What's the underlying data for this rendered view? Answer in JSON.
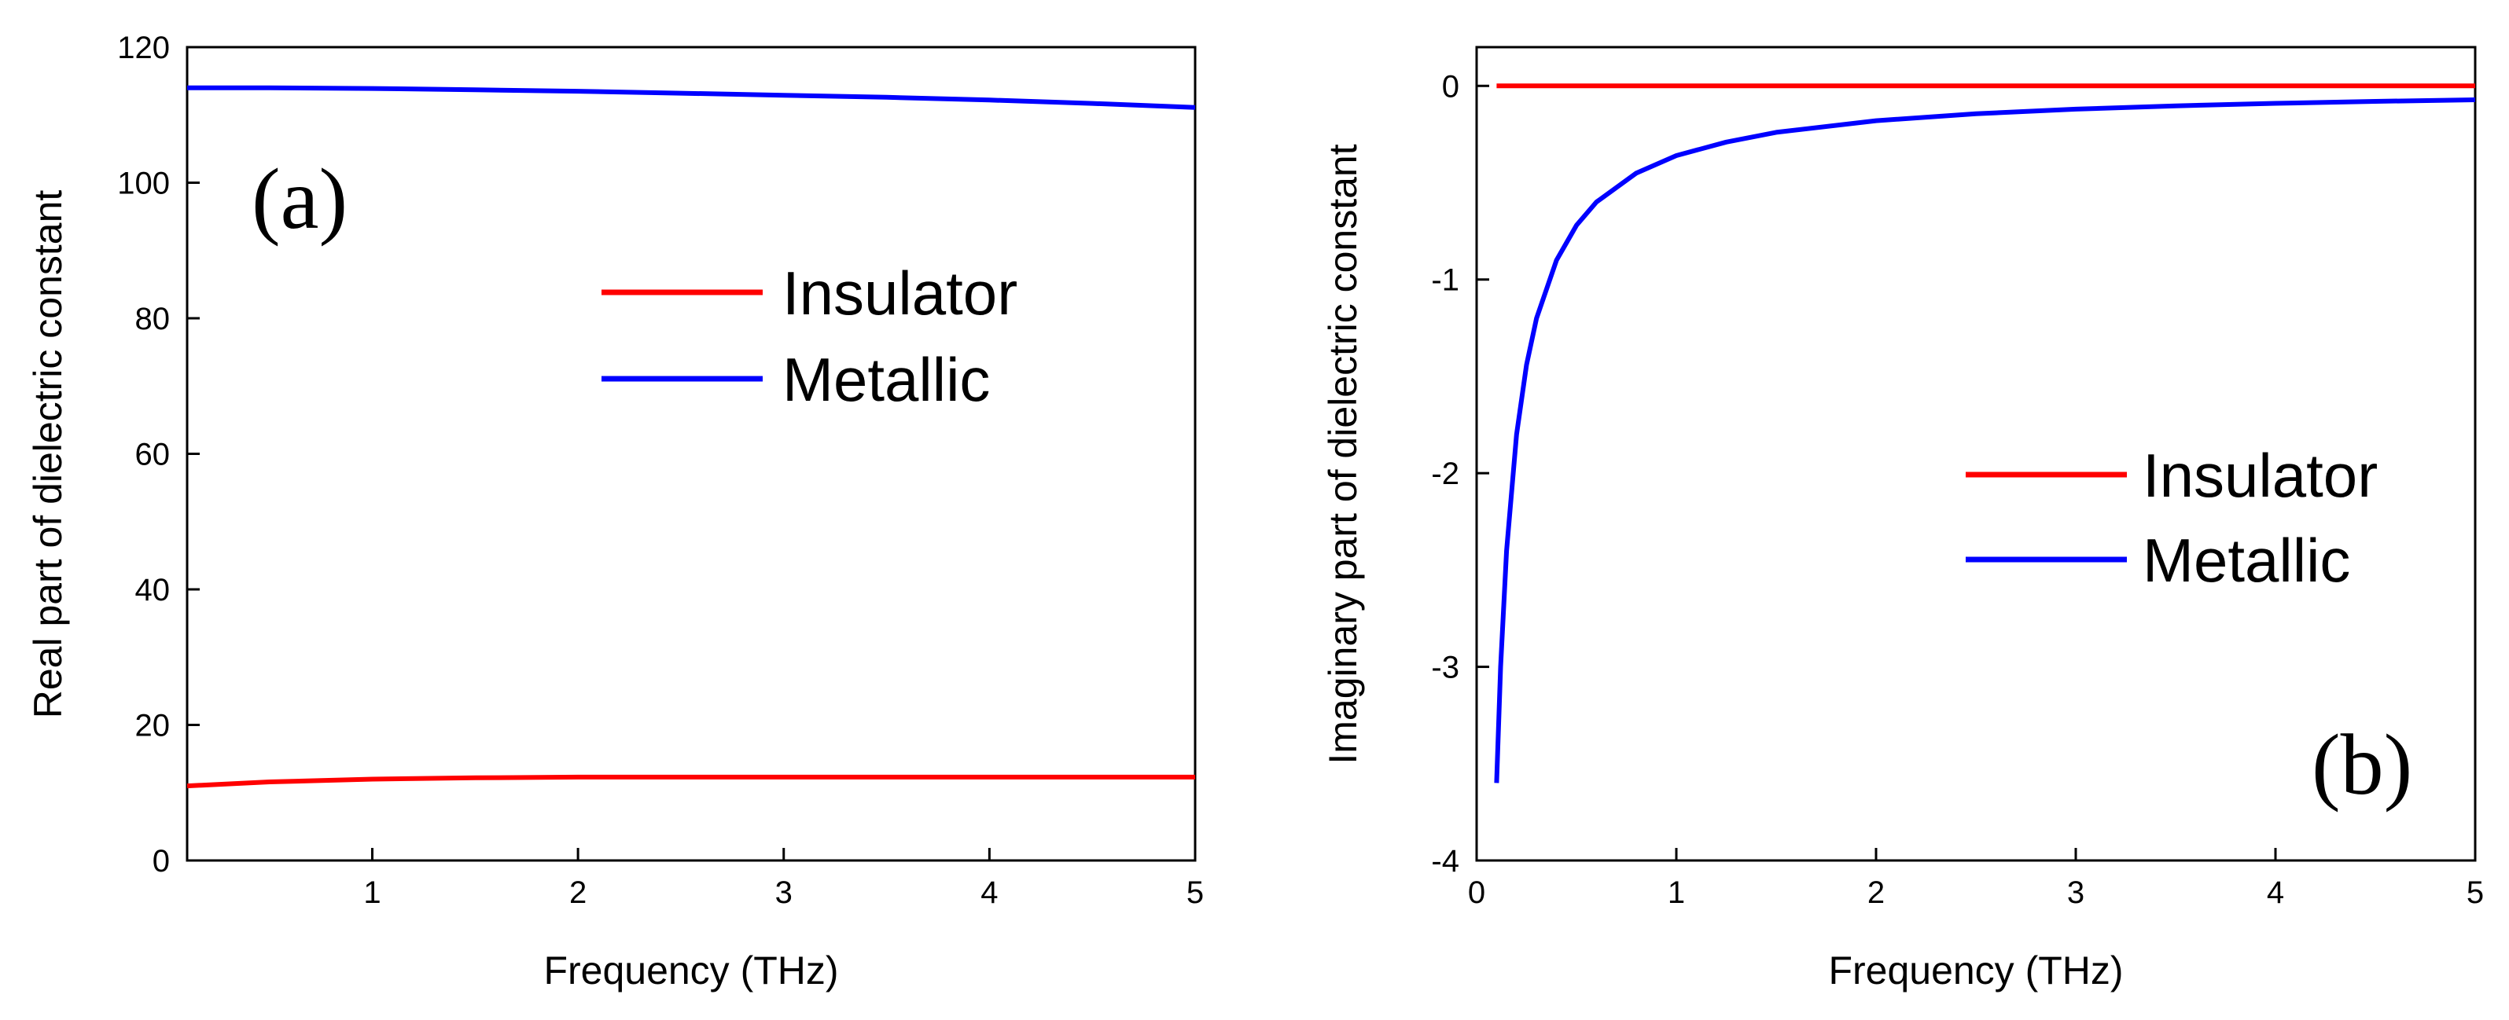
{
  "chart_data": [
    {
      "type": "line",
      "panel_label": "(a)",
      "xlabel": "Frequency (THz)",
      "ylabel": "Real part of dielectric constant",
      "xlim": [
        0.1,
        5
      ],
      "ylim": [
        0,
        120
      ],
      "xticks": [
        1,
        2,
        3,
        4,
        5
      ],
      "yticks": [
        0,
        20,
        40,
        60,
        80,
        100,
        120
      ],
      "legend_position": "middle-right",
      "series": [
        {
          "name": "Insulator",
          "color": "#ff0000",
          "x": [
            0.1,
            0.5,
            1.0,
            1.5,
            2.0,
            2.5,
            3.0,
            3.5,
            4.0,
            4.5,
            5.0
          ],
          "y": [
            11.0,
            11.6,
            12.0,
            12.2,
            12.3,
            12.3,
            12.3,
            12.3,
            12.3,
            12.3,
            12.3
          ]
        },
        {
          "name": "Metallic",
          "color": "#0000ff",
          "x": [
            0.1,
            0.5,
            1.0,
            1.5,
            2.0,
            2.5,
            3.0,
            3.5,
            4.0,
            4.5,
            5.0
          ],
          "y": [
            114.0,
            114.0,
            113.9,
            113.7,
            113.5,
            113.2,
            112.9,
            112.6,
            112.2,
            111.7,
            111.1
          ]
        }
      ]
    },
    {
      "type": "line",
      "panel_label": "(b)",
      "xlabel": "Frequency (THz)",
      "ylabel": "Imaginary part of dielectric constant",
      "xlim": [
        0,
        5
      ],
      "ylim": [
        -4,
        0.2
      ],
      "xticks": [
        0,
        1,
        2,
        3,
        4,
        5
      ],
      "yticks": [
        -4,
        -3,
        -2,
        -1,
        0
      ],
      "legend_position": "middle-right",
      "series": [
        {
          "name": "Insulator",
          "color": "#ff0000",
          "x": [
            0.1,
            1.0,
            2.0,
            3.0,
            4.0,
            5.0
          ],
          "y": [
            0,
            0,
            0,
            0,
            0,
            0
          ]
        },
        {
          "name": "Metallic",
          "color": "#0000ff",
          "x": [
            0.1,
            0.12,
            0.15,
            0.2,
            0.25,
            0.3,
            0.4,
            0.5,
            0.6,
            0.8,
            1.0,
            1.25,
            1.5,
            2.0,
            2.5,
            3.0,
            3.5,
            4.0,
            4.5,
            5.0
          ],
          "y": [
            -3.6,
            -3.0,
            -2.4,
            -1.8,
            -1.44,
            -1.2,
            -0.9,
            -0.72,
            -0.6,
            -0.45,
            -0.36,
            -0.29,
            -0.24,
            -0.18,
            -0.144,
            -0.12,
            -0.103,
            -0.09,
            -0.08,
            -0.072
          ]
        }
      ]
    }
  ]
}
